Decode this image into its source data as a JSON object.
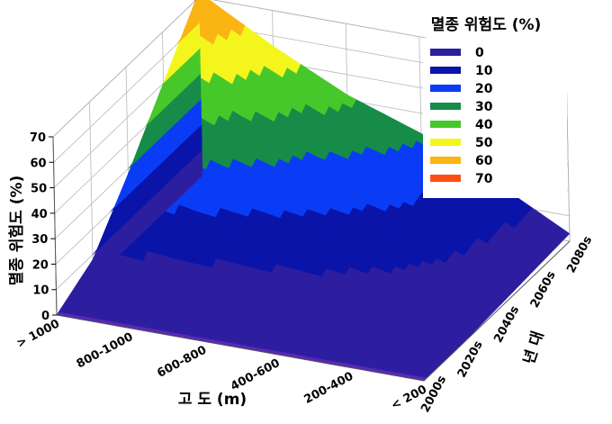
{
  "chart_data": {
    "type": "area",
    "style": "3d-filled-contour-surface",
    "zlabel": "멸종 위험도 (%)",
    "xlabel": "고 도 (m)",
    "ylabel": "년 대",
    "zlim": [
      0,
      70
    ],
    "z_ticks": [
      "0",
      "10",
      "20",
      "30",
      "40",
      "50",
      "60",
      "70"
    ],
    "x_categories": [
      "> 1000",
      "800-1000",
      "600-800",
      "400-600",
      "200-400",
      "< 200"
    ],
    "y_categories": [
      "2000s",
      "2020s",
      "2040s",
      "2060s",
      "2080s"
    ],
    "surface_series": [
      {
        "year": "2000s",
        "values": [
          0,
          0,
          0,
          0,
          0,
          0
        ]
      },
      {
        "year": "2020s",
        "values": [
          8,
          6,
          5,
          4,
          1,
          0
        ]
      },
      {
        "year": "2040s",
        "values": [
          28,
          22,
          18,
          14,
          8,
          1
        ]
      },
      {
        "year": "2060s",
        "values": [
          50,
          38,
          28,
          22,
          14,
          2
        ]
      },
      {
        "year": "2080s",
        "values": [
          72,
          56,
          42,
          32,
          18,
          3
        ]
      }
    ],
    "legend": {
      "title": "멸종 위험도 (%)",
      "position": "top-right",
      "entries": [
        {
          "label": "0",
          "color": "#2d1ea0"
        },
        {
          "label": "10",
          "color": "#0a14a8"
        },
        {
          "label": "20",
          "color": "#0a3cf5"
        },
        {
          "label": "30",
          "color": "#168c48"
        },
        {
          "label": "40",
          "color": "#46c82a"
        },
        {
          "label": "50",
          "color": "#f5f51e"
        },
        {
          "label": "60",
          "color": "#fab414"
        },
        {
          "label": "70",
          "color": "#ff5014"
        }
      ]
    },
    "floor_color": "#5a28b4",
    "grid": true
  }
}
